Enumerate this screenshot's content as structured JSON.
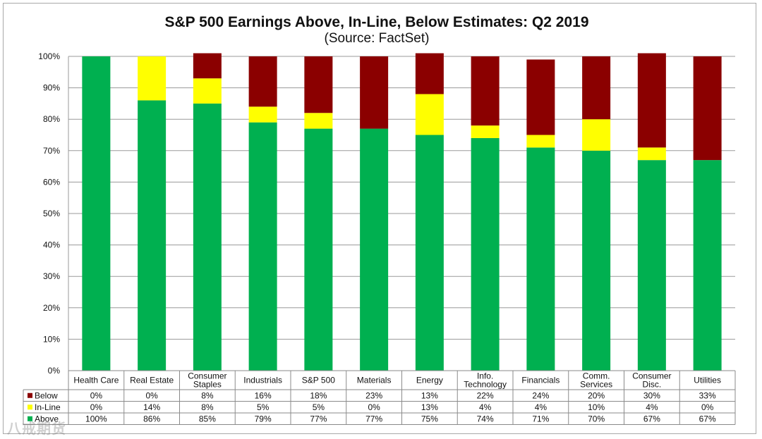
{
  "chart_data": {
    "type": "bar",
    "stacked": true,
    "title": "S&P 500 Earnings Above, In-Line, Below Estimates: Q2 2019",
    "subtitle": "(Source: FactSet)",
    "categories": [
      [
        "Health Care"
      ],
      [
        "Real Estate"
      ],
      [
        "Consumer",
        "Staples"
      ],
      [
        "Industrials"
      ],
      [
        "S&P 500"
      ],
      [
        "Materials"
      ],
      [
        "Energy"
      ],
      [
        "Info.",
        "Technology"
      ],
      [
        "Financials"
      ],
      [
        "Comm.",
        "Services"
      ],
      [
        "Consumer",
        "Disc."
      ],
      [
        "Utilities"
      ]
    ],
    "series": [
      {
        "name": "Above",
        "color": "#00b050",
        "values": [
          100,
          86,
          85,
          79,
          77,
          77,
          75,
          74,
          71,
          70,
          67,
          67
        ]
      },
      {
        "name": "In-Line",
        "color": "#ffff00",
        "values": [
          0,
          14,
          8,
          5,
          5,
          0,
          13,
          4,
          4,
          10,
          4,
          0
        ]
      },
      {
        "name": "Below",
        "color": "#8b0000",
        "values": [
          0,
          0,
          8,
          16,
          18,
          23,
          13,
          22,
          24,
          20,
          30,
          33
        ]
      }
    ],
    "table_rows": [
      {
        "name": "Below",
        "color": "#8b0000",
        "labels": [
          "0%",
          "0%",
          "8%",
          "16%",
          "18%",
          "23%",
          "13%",
          "22%",
          "24%",
          "20%",
          "30%",
          "33%"
        ]
      },
      {
        "name": "In-Line",
        "color": "#ffff00",
        "labels": [
          "0%",
          "14%",
          "8%",
          "5%",
          "5%",
          "0%",
          "13%",
          "4%",
          "4%",
          "10%",
          "4%",
          "0%"
        ]
      },
      {
        "name": "Above",
        "color": "#00b050",
        "labels": [
          "100%",
          "86%",
          "85%",
          "79%",
          "77%",
          "77%",
          "75%",
          "74%",
          "71%",
          "70%",
          "67%",
          "67%"
        ]
      }
    ],
    "yticks": [
      "0%",
      "10%",
      "20%",
      "30%",
      "40%",
      "50%",
      "60%",
      "70%",
      "80%",
      "90%",
      "100%"
    ],
    "ylim": [
      0,
      100
    ],
    "grid": true
  },
  "watermark": "八戒期货"
}
